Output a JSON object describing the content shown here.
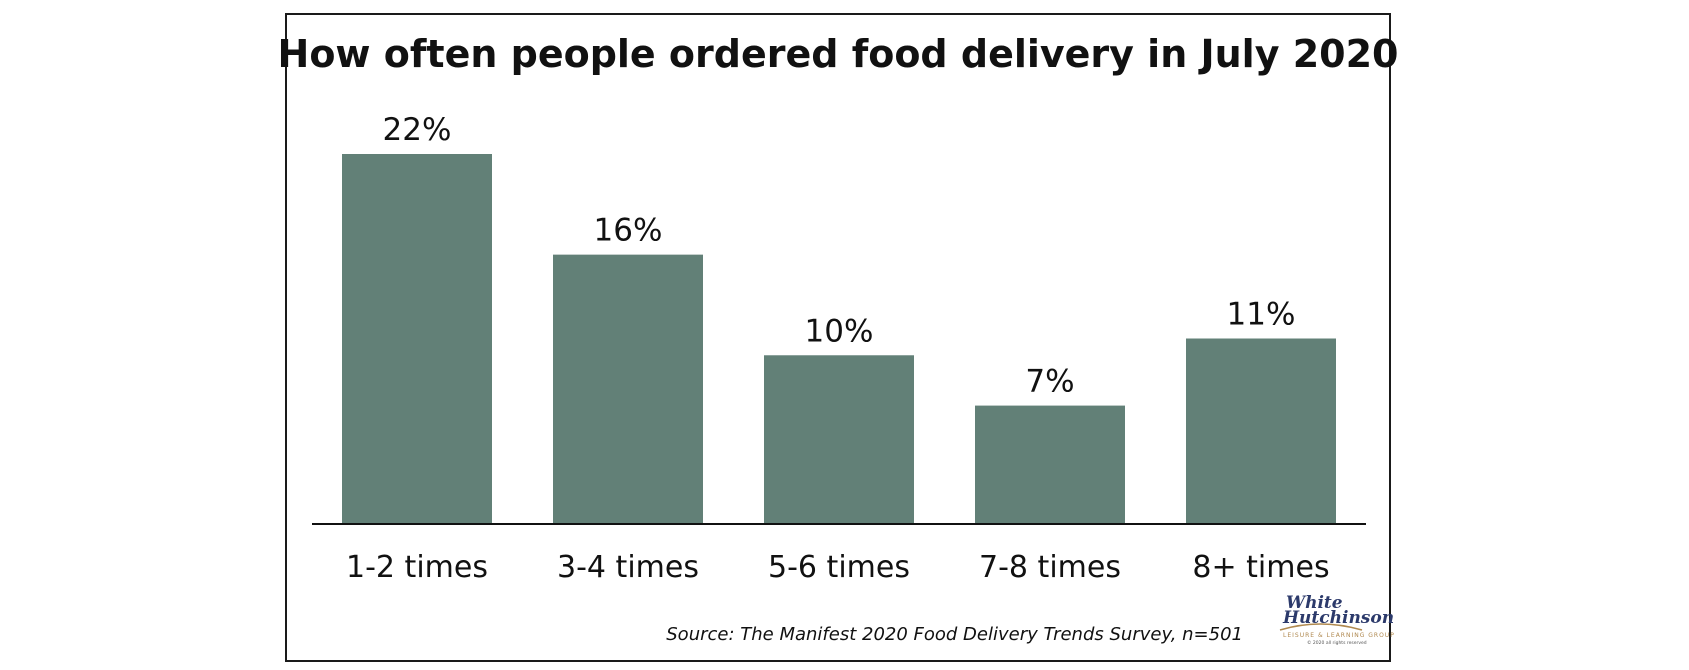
{
  "chart_data": {
    "type": "bar",
    "title": "How often people ordered food delivery in July 2020",
    "categories": [
      "1-2 times",
      "3-4 times",
      "5-6 times",
      "7-8 times",
      "8+ times"
    ],
    "values": [
      22,
      16,
      10,
      7,
      11
    ],
    "value_labels": [
      "22%",
      "16%",
      "10%",
      "7%",
      "11%"
    ],
    "ylim": [
      0,
      22
    ],
    "grid": false,
    "legend": "none",
    "bar_color": "#628077",
    "source": "Source: The Manifest 2020 Food Delivery Trends Survey, n=501"
  },
  "logo": {
    "line1": "White",
    "line2": "Hutchinson",
    "tagline": "LEISURE & LEARNING GROUP",
    "copyright": "© 2020 all rights reserved"
  }
}
